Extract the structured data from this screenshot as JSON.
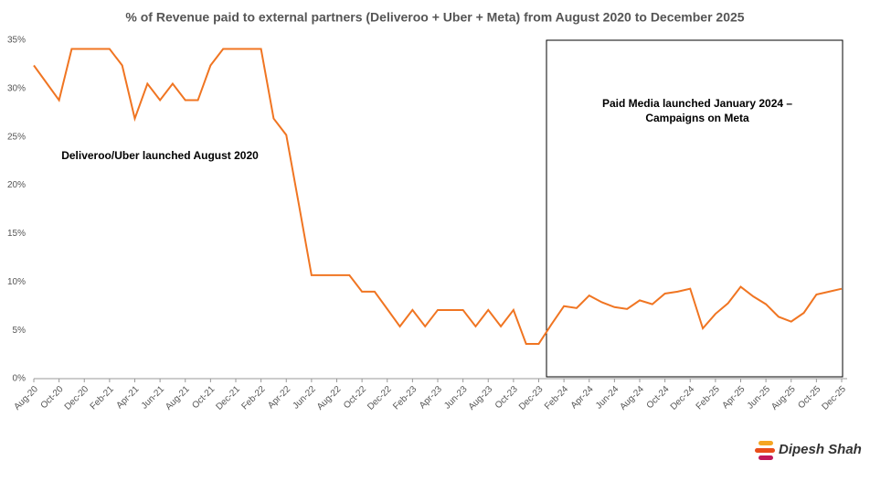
{
  "chart_data": {
    "type": "line",
    "title": "% of Revenue paid to external partners (Deliveroo + Uber + Meta) from August 2020 to December 2025",
    "categories": [
      "Aug-20",
      null,
      "Oct-20",
      null,
      "Dec-20",
      null,
      "Feb-21",
      null,
      "Apr-21",
      null,
      "Jun-21",
      null,
      "Aug-21",
      null,
      "Oct-21",
      null,
      "Dec-21",
      null,
      "Feb-22",
      null,
      "Apr-22",
      null,
      "Jun-22",
      null,
      "Aug-22",
      null,
      "Oct-22",
      null,
      "Dec-22",
      null,
      "Feb-23",
      null,
      "Apr-23",
      null,
      "Jun-23",
      null,
      "Aug-23",
      null,
      "Oct-23",
      null,
      "Dec-23",
      null,
      "Feb-24",
      null,
      "Apr-24",
      null,
      "Jun-24",
      null,
      "Aug-24",
      null,
      "Oct-24",
      null,
      "Dec-24",
      null,
      "Feb-25",
      null,
      "Apr-25",
      null,
      "Jun-25",
      null,
      "Aug-25",
      null,
      "Oct-25",
      null,
      "Dec-25"
    ],
    "values": [
      32.4,
      30.6,
      28.8,
      34.1,
      34.1,
      34.1,
      34.1,
      32.4,
      26.9,
      30.5,
      28.8,
      30.5,
      28.8,
      28.8,
      32.4,
      34.1,
      34.1,
      34.1,
      34.1,
      26.9,
      25.2,
      18,
      10.7,
      10.7,
      10.7,
      10.7,
      9.0,
      9.0,
      7.2,
      5.4,
      7.1,
      5.4,
      7.1,
      7.1,
      7.1,
      5.4,
      7.1,
      5.4,
      7.1,
      3.6,
      3.6,
      5.6,
      7.5,
      7.3,
      8.6,
      7.9,
      7.4,
      7.2,
      8.1,
      7.7,
      8.8,
      9.0,
      9.3,
      5.2,
      6.7,
      7.8,
      9.5,
      8.5,
      7.7,
      6.4,
      5.9,
      6.8,
      8.7,
      9.0,
      9.3
    ],
    "color": "#f07522",
    "ylim": [
      0,
      35
    ],
    "yticks": [
      {
        "value": 0,
        "label": "0%"
      },
      {
        "value": 5,
        "label": "5%"
      },
      {
        "value": 10,
        "label": "10%"
      },
      {
        "value": 15,
        "label": "15%"
      },
      {
        "value": 20,
        "label": "20%"
      },
      {
        "value": 25,
        "label": "25%"
      },
      {
        "value": 30,
        "label": "30%"
      },
      {
        "value": 35,
        "label": "35%"
      }
    ],
    "grid": false,
    "annotations": [
      "Deliveroo/Uber launched August 2020",
      "Paid Media launched January 2024 –",
      "Campaigns on Meta"
    ]
  },
  "logo": "Dipesh Shah"
}
